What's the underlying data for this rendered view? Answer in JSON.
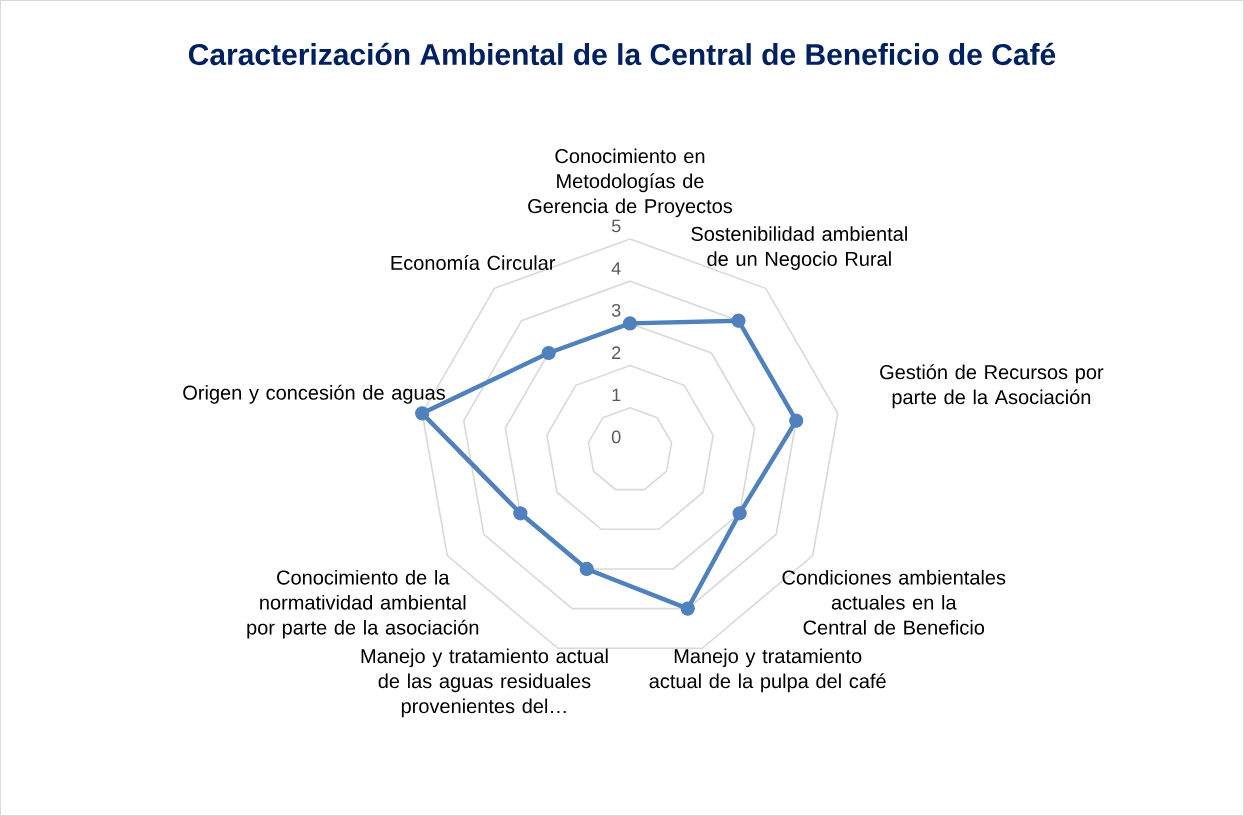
{
  "chart_data": {
    "type": "radar",
    "title": "Caracterización Ambiental de la Central de Beneficio de Café",
    "categories": [
      "Conocimiento en Metodologías de Gerencia de Proyectos",
      "Sostenibilidad ambiental de un Negocio Rural",
      "Gestión de Recursos por parte de la Asociación",
      "Condiciones ambientales actuales en la Central de Beneficio",
      "Manejo y tratamiento actual de la pulpa del café",
      "Manejo y tratamiento actual de las aguas residuales provenientes del…",
      "Conocimiento de la normatividad ambiental por parte de la asociación",
      "Origen y concesión de aguas",
      "Economía Circular"
    ],
    "series": [
      {
        "color": "#4f81bd",
        "values": [
          3,
          4,
          4,
          3,
          4,
          3,
          3,
          5,
          3
        ]
      }
    ],
    "ylim": [
      0,
      5
    ],
    "yticks": [
      0,
      1,
      2,
      3,
      4,
      5
    ],
    "grid": true,
    "marker": "circle"
  }
}
